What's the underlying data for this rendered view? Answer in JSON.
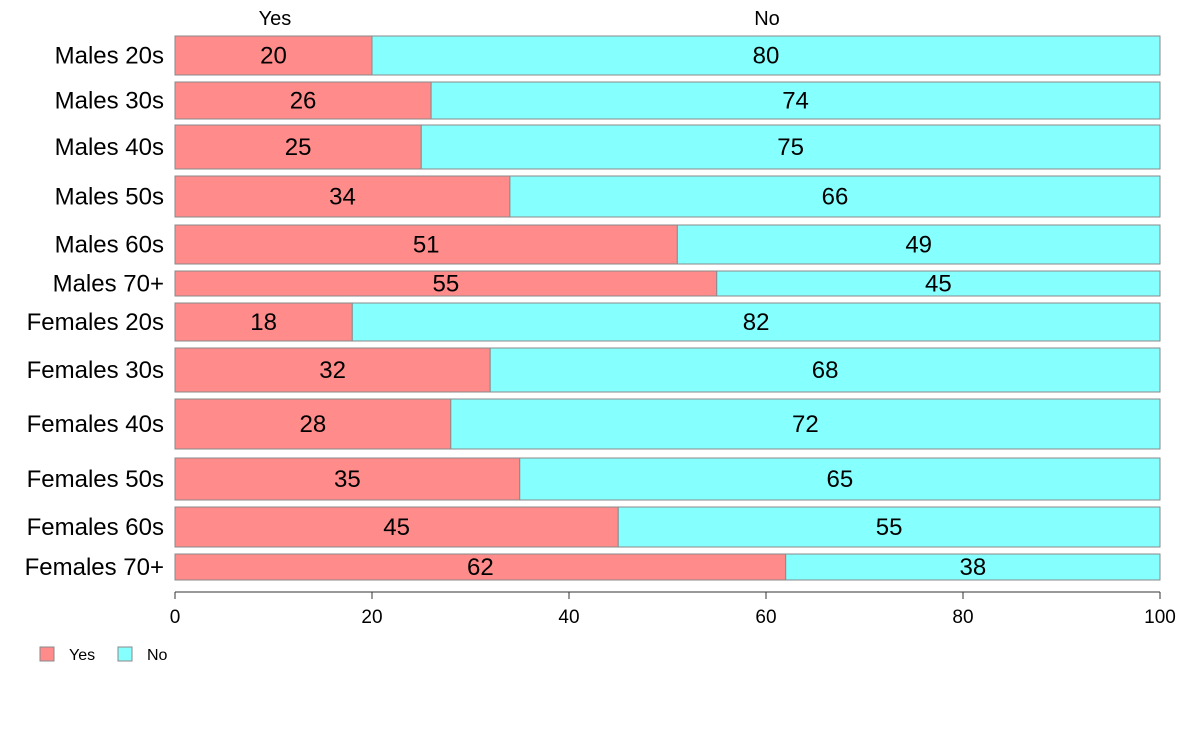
{
  "chart_data": {
    "type": "bar",
    "orientation": "horizontal",
    "stacked": true,
    "categories": [
      "Males 20s",
      "Males 30s",
      "Males 40s",
      "Males 50s",
      "Males 60s",
      "Males 70+",
      "Females 20s",
      "Females 30s",
      "Females 40s",
      "Females 50s",
      "Females 60s",
      "Females 70+"
    ],
    "series": [
      {
        "name": "Yes",
        "color": "#FF8B8B",
        "values": [
          20,
          26,
          25,
          34,
          51,
          55,
          18,
          32,
          28,
          35,
          45,
          62
        ]
      },
      {
        "name": "No",
        "color": "#86FFFF",
        "values": [
          80,
          74,
          75,
          66,
          49,
          45,
          82,
          68,
          72,
          65,
          55,
          38
        ]
      }
    ],
    "top_labels": [
      "Yes",
      "No"
    ],
    "x_ticks": [
      0,
      20,
      40,
      60,
      80,
      100
    ],
    "xlim": [
      0,
      100
    ],
    "legend": {
      "placement": "bottom-left",
      "items": [
        "Yes",
        "No"
      ]
    },
    "grid": false,
    "title": "",
    "xlabel": "",
    "ylabel": ""
  }
}
